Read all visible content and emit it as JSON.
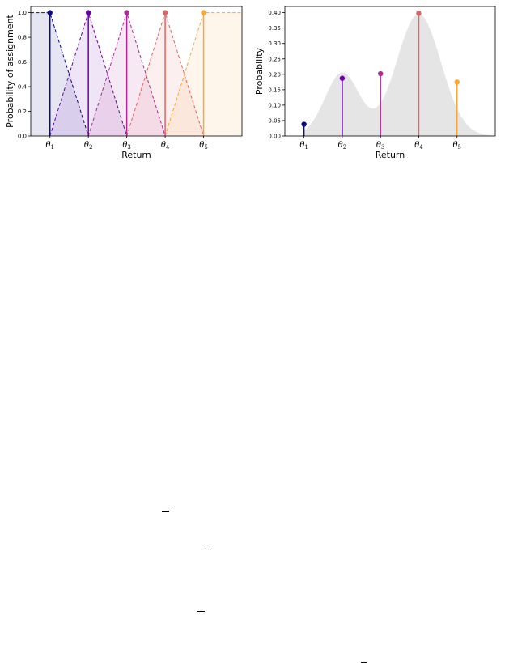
{
  "chart_data": [
    {
      "type": "line",
      "title": "",
      "xlabel": "Return",
      "ylabel": "Probability of assignment",
      "categories": [
        "θ1",
        "θ2",
        "θ3",
        "θ4",
        "θ5"
      ],
      "xlim": [
        0.5,
        6.0
      ],
      "ylim": [
        0.0,
        1.05
      ],
      "yticks": [
        "0.0",
        "0.2",
        "0.4",
        "0.6",
        "0.8",
        "1.0"
      ],
      "colors": [
        "#0d0887",
        "#6a00a8",
        "#b12a90",
        "#e16462",
        "#fca636"
      ],
      "series": [
        {
          "x": [
            0.5,
            1,
            2
          ],
          "y": [
            1,
            1,
            0
          ]
        },
        {
          "x": [
            1,
            2,
            3
          ],
          "y": [
            0,
            1,
            0
          ]
        },
        {
          "x": [
            2,
            3,
            4
          ],
          "y": [
            0,
            1,
            0
          ]
        },
        {
          "x": [
            3,
            4,
            5
          ],
          "y": [
            0,
            1,
            0
          ]
        },
        {
          "x": [
            4,
            5,
            6
          ],
          "y": [
            0,
            1,
            1
          ]
        }
      ],
      "stems": [
        1,
        1,
        1,
        1,
        1
      ]
    },
    {
      "type": "bar",
      "title": "",
      "xlabel": "Return",
      "ylabel": "Probability",
      "categories": [
        "θ1",
        "θ2",
        "θ3",
        "θ4",
        "θ5"
      ],
      "values": [
        0.038,
        0.187,
        0.202,
        0.398,
        0.175
      ],
      "xlim": [
        0.5,
        6.0
      ],
      "ylim": [
        0.0,
        0.42
      ],
      "yticks": [
        "0.00",
        "0.05",
        "0.10",
        "0.15",
        "0.20",
        "0.25",
        "0.30",
        "0.35",
        "0.40"
      ],
      "colors": [
        "#0d0887",
        "#6a00a8",
        "#b12a90",
        "#e16462",
        "#fca636"
      ],
      "density_color": "#e5e5e5"
    }
  ]
}
